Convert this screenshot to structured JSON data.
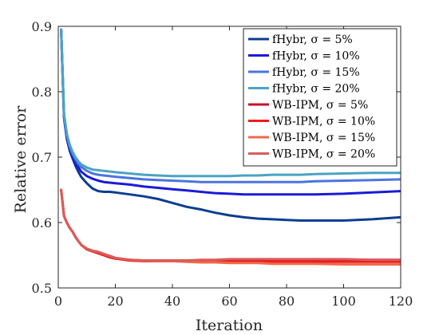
{
  "chart_data": {
    "type": "line",
    "xlabel": "Iteration",
    "ylabel": "Relative error",
    "xlim": [
      0,
      120
    ],
    "ylim": [
      0.5,
      0.9
    ],
    "xticks": [
      "0",
      "20",
      "40",
      "60",
      "80",
      "100",
      "120"
    ],
    "yticks": [
      "0.5",
      "0.6",
      "0.7",
      "0.8",
      "0.9"
    ],
    "grid": false,
    "legend_position": "top-right",
    "x": [
      1,
      2,
      3,
      4,
      5,
      6,
      7,
      8,
      10,
      12,
      14,
      16,
      18,
      20,
      25,
      30,
      35,
      40,
      45,
      50,
      55,
      60,
      65,
      70,
      75,
      80,
      85,
      90,
      100,
      110,
      120
    ],
    "series": [
      {
        "name": "fHybr, σ = 5%",
        "color": "#0b3d91",
        "values": [
          0.895,
          0.76,
          0.728,
          0.71,
          0.698,
          0.687,
          0.678,
          0.67,
          0.66,
          0.652,
          0.648,
          0.647,
          0.647,
          0.646,
          0.643,
          0.64,
          0.636,
          0.63,
          0.624,
          0.62,
          0.615,
          0.611,
          0.608,
          0.606,
          0.605,
          0.604,
          0.603,
          0.603,
          0.603,
          0.605,
          0.608
        ]
      },
      {
        "name": "fHybr, σ = 10%",
        "color": "#1a1adb",
        "values": [
          0.895,
          0.762,
          0.73,
          0.713,
          0.701,
          0.692,
          0.685,
          0.678,
          0.671,
          0.667,
          0.664,
          0.662,
          0.661,
          0.66,
          0.658,
          0.655,
          0.653,
          0.651,
          0.649,
          0.647,
          0.645,
          0.644,
          0.643,
          0.643,
          0.643,
          0.643,
          0.643,
          0.643,
          0.644,
          0.646,
          0.648
        ]
      },
      {
        "name": "fHybr, σ = 15%",
        "color": "#4a74e0",
        "values": [
          0.895,
          0.764,
          0.733,
          0.716,
          0.705,
          0.697,
          0.69,
          0.685,
          0.679,
          0.675,
          0.673,
          0.672,
          0.671,
          0.67,
          0.668,
          0.666,
          0.665,
          0.664,
          0.663,
          0.662,
          0.662,
          0.662,
          0.662,
          0.662,
          0.662,
          0.662,
          0.662,
          0.663,
          0.664,
          0.665,
          0.666
        ]
      },
      {
        "name": "fHybr, σ = 20%",
        "color": "#4ba3c3",
        "values": [
          0.895,
          0.766,
          0.736,
          0.719,
          0.708,
          0.7,
          0.694,
          0.689,
          0.684,
          0.681,
          0.68,
          0.679,
          0.678,
          0.677,
          0.675,
          0.673,
          0.672,
          0.671,
          0.671,
          0.671,
          0.671,
          0.671,
          0.672,
          0.672,
          0.673,
          0.673,
          0.673,
          0.674,
          0.675,
          0.676,
          0.676
        ]
      },
      {
        "name": "WB-IPM, σ = 5%",
        "color": "#c8102e",
        "values": [
          0.65,
          0.61,
          0.6,
          0.592,
          0.586,
          0.578,
          0.572,
          0.566,
          0.559,
          0.556,
          0.553,
          0.55,
          0.547,
          0.545,
          0.543,
          0.542,
          0.542,
          0.542,
          0.542,
          0.542,
          0.542,
          0.542,
          0.542,
          0.543,
          0.543,
          0.543,
          0.543,
          0.543,
          0.543,
          0.543,
          0.543
        ]
      },
      {
        "name": "WB-IPM, σ = 10%",
        "color": "#ee1c1c",
        "values": [
          0.65,
          0.61,
          0.6,
          0.592,
          0.586,
          0.578,
          0.572,
          0.566,
          0.559,
          0.556,
          0.553,
          0.55,
          0.547,
          0.545,
          0.542,
          0.541,
          0.541,
          0.541,
          0.541,
          0.541,
          0.54,
          0.54,
          0.54,
          0.54,
          0.54,
          0.54,
          0.54,
          0.54,
          0.54,
          0.54,
          0.54
        ]
      },
      {
        "name": "WB-IPM, σ = 15%",
        "color": "#f06a4a",
        "values": [
          0.65,
          0.61,
          0.6,
          0.592,
          0.586,
          0.578,
          0.572,
          0.566,
          0.56,
          0.557,
          0.555,
          0.552,
          0.549,
          0.546,
          0.543,
          0.542,
          0.541,
          0.541,
          0.54,
          0.539,
          0.539,
          0.538,
          0.538,
          0.538,
          0.537,
          0.537,
          0.537,
          0.537,
          0.536,
          0.536,
          0.536
        ]
      },
      {
        "name": "WB-IPM, σ = 20%",
        "color": "#d95c5c",
        "values": [
          0.65,
          0.61,
          0.6,
          0.592,
          0.586,
          0.578,
          0.572,
          0.566,
          0.56,
          0.557,
          0.555,
          0.552,
          0.549,
          0.546,
          0.543,
          0.542,
          0.542,
          0.542,
          0.542,
          0.543,
          0.543,
          0.544,
          0.544,
          0.544,
          0.544,
          0.544,
          0.544,
          0.544,
          0.544,
          0.543,
          0.543
        ]
      }
    ]
  }
}
